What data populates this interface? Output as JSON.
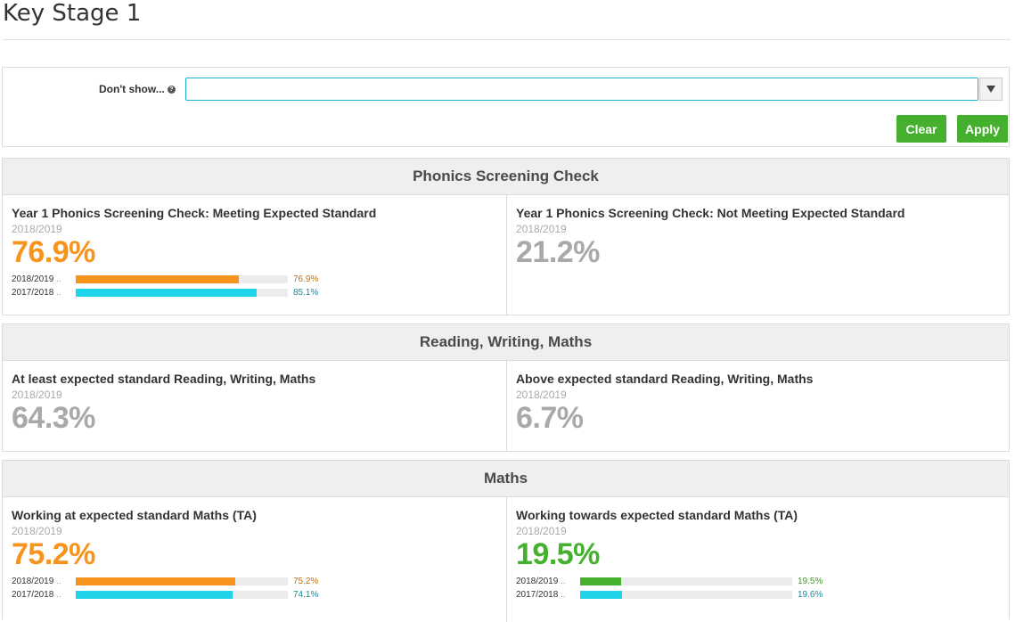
{
  "page": {
    "title": "Key Stage 1"
  },
  "filter": {
    "label": "Don't show...",
    "value": "",
    "placeholder": "",
    "clear_label": "Clear",
    "apply_label": "Apply"
  },
  "colors": {
    "orange": "#f7941d",
    "cyan": "#1fd3e8",
    "green": "#45b02d",
    "grey": "#a9a9a9",
    "orange_text": "#c27010",
    "cyan_text": "#1a8a9c"
  },
  "sections": [
    {
      "title": "Phonics Screening Check",
      "cards": [
        {
          "title": "Year 1 Phonics Screening Check: Meeting Expected Standard",
          "year": "2018/2019",
          "value": "76.9%",
          "value_color": "#f7941d",
          "bars": [
            {
              "label": "2018/2019",
              "value": 76.9,
              "text": "76.9%",
              "color": "#f7941d",
              "text_color": "#c27010"
            },
            {
              "label": "2017/2018",
              "value": 85.1,
              "text": "85.1%",
              "color": "#1fd3e8",
              "text_color": "#1a8a9c"
            }
          ]
        },
        {
          "title": "Year 1 Phonics Screening Check: Not Meeting Expected Standard",
          "year": "2018/2019",
          "value": "21.2%",
          "value_color": "#a9a9a9",
          "bars": []
        }
      ]
    },
    {
      "title": "Reading, Writing, Maths",
      "cards": [
        {
          "title": "At least expected standard Reading, Writing, Maths",
          "year": "2018/2019",
          "value": "64.3%",
          "value_color": "#a9a9a9",
          "bars": []
        },
        {
          "title": "Above expected standard Reading, Writing, Maths",
          "year": "2018/2019",
          "value": "6.7%",
          "value_color": "#a9a9a9",
          "bars": []
        }
      ]
    },
    {
      "title": "Maths",
      "cards": [
        {
          "title": "Working at expected standard Maths (TA)",
          "year": "2018/2019",
          "value": "75.2%",
          "value_color": "#f7941d",
          "bars": [
            {
              "label": "2018/2019",
              "value": 75.2,
              "text": "75.2%",
              "color": "#f7941d",
              "text_color": "#c27010"
            },
            {
              "label": "2017/2018",
              "value": 74.1,
              "text": "74.1%",
              "color": "#1fd3e8",
              "text_color": "#1a8a9c"
            }
          ]
        },
        {
          "title": "Working towards expected standard Maths (TA)",
          "year": "2018/2019",
          "value": "19.5%",
          "value_color": "#45b02d",
          "bars": [
            {
              "label": "2018/2019",
              "value": 19.5,
              "text": "19.5%",
              "color": "#45b02d",
              "text_color": "#3d9a28"
            },
            {
              "label": "2017/2018",
              "value": 19.6,
              "text": "19.6%",
              "color": "#1fd3e8",
              "text_color": "#1a8a9c"
            }
          ]
        }
      ]
    }
  ]
}
